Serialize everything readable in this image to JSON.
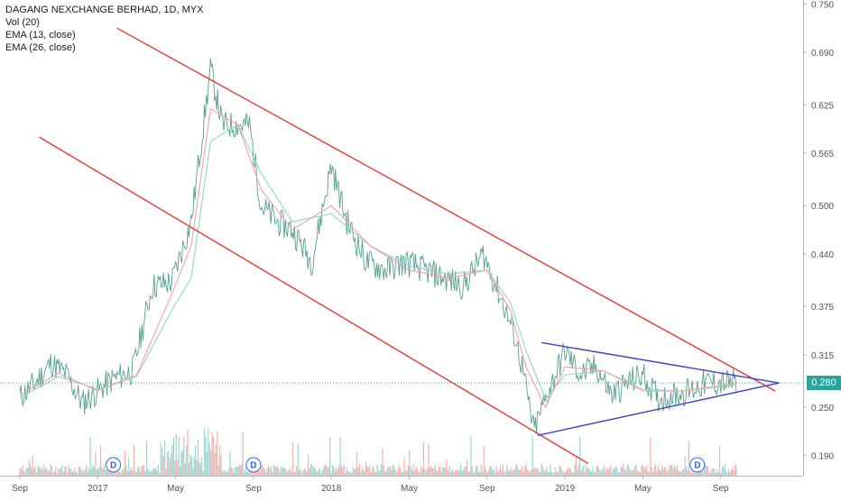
{
  "legend": {
    "title": "DAGANG NEXCHANGE BERHAD, 1D, MYX",
    "volume": "Vol (20)",
    "ema_fast": "EMA (13, close)",
    "ema_slow": "EMA (26, close)"
  },
  "last_price": "0.280",
  "colors": {
    "up": "#26a69a",
    "down": "#ef5350",
    "ema_fast": "#f7a19b",
    "ema_slow": "#8fd6c8",
    "trendline_red": "#e53935",
    "trendline_blue": "#3f3fd0",
    "price_badge": "#26a69a",
    "dividend": "#2962ff"
  },
  "chart_data": {
    "type": "line",
    "title": "DAGANG NEXCHANGE BERHAD, 1D, MYX",
    "x_ticks": [
      "Sep",
      "2017",
      "May",
      "Sep",
      "2018",
      "May",
      "Sep",
      "2019",
      "May",
      "Sep"
    ],
    "y_ticks": [
      "0.750",
      "0.690",
      "0.625",
      "0.565",
      "0.500",
      "0.440",
      "0.375",
      "0.315",
      "0.250",
      "0.190"
    ],
    "ylim": [
      0.165,
      0.755
    ],
    "last_price": 0.28,
    "dividend_markers": [
      "D",
      "D",
      "D"
    ],
    "price_path": {
      "x": [
        0,
        0.2,
        0.4,
        0.6,
        0.8,
        1.0,
        1.2,
        1.45,
        1.7,
        1.95,
        2.2,
        2.45,
        2.6,
        2.8,
        2.95,
        3.1,
        3.3,
        3.5,
        3.75,
        4.0,
        4.2,
        4.45,
        4.7,
        4.95,
        5.2,
        5.45,
        5.7,
        5.95,
        6.2,
        6.35,
        6.45,
        6.6,
        6.75,
        7.0,
        7.2,
        7.4,
        7.6,
        7.8,
        8.0,
        8.2,
        8.4,
        8.6,
        8.8,
        9.0,
        9.2
      ],
      "y": [
        0.262,
        0.28,
        0.305,
        0.29,
        0.255,
        0.27,
        0.285,
        0.295,
        0.4,
        0.405,
        0.48,
        0.67,
        0.6,
        0.6,
        0.6,
        0.5,
        0.48,
        0.47,
        0.43,
        0.55,
        0.48,
        0.43,
        0.42,
        0.43,
        0.42,
        0.41,
        0.4,
        0.44,
        0.38,
        0.34,
        0.3,
        0.22,
        0.26,
        0.32,
        0.29,
        0.3,
        0.265,
        0.28,
        0.29,
        0.26,
        0.265,
        0.27,
        0.28,
        0.28,
        0.28
      ]
    },
    "ema13": {
      "x": [
        0,
        0.5,
        1.0,
        1.5,
        1.95,
        2.2,
        2.45,
        2.8,
        3.1,
        3.5,
        4.0,
        4.5,
        5.0,
        5.5,
        6.0,
        6.3,
        6.5,
        6.75,
        7.0,
        7.5,
        8.0,
        8.5,
        9.0,
        9.2
      ],
      "y": [
        0.265,
        0.292,
        0.27,
        0.29,
        0.39,
        0.45,
        0.62,
        0.6,
        0.52,
        0.47,
        0.5,
        0.45,
        0.42,
        0.41,
        0.42,
        0.37,
        0.3,
        0.25,
        0.3,
        0.295,
        0.27,
        0.27,
        0.277,
        0.28
      ]
    },
    "ema26": {
      "x": [
        0,
        0.5,
        1.0,
        1.5,
        1.95,
        2.2,
        2.45,
        2.8,
        3.1,
        3.5,
        4.0,
        4.5,
        5.0,
        5.5,
        6.0,
        6.3,
        6.5,
        6.75,
        7.0,
        7.5,
        8.0,
        8.5,
        9.0,
        9.2
      ],
      "y": [
        0.262,
        0.288,
        0.272,
        0.288,
        0.37,
        0.41,
        0.58,
        0.6,
        0.54,
        0.48,
        0.49,
        0.45,
        0.425,
        0.415,
        0.42,
        0.38,
        0.32,
        0.26,
        0.29,
        0.295,
        0.272,
        0.27,
        0.275,
        0.278
      ]
    },
    "trendlines": [
      {
        "name": "channel-upper",
        "x": [
          1.25,
          9.7
        ],
        "y": [
          0.72,
          0.27
        ]
      },
      {
        "name": "channel-lower",
        "x": [
          0.25,
          7.3
        ],
        "y": [
          0.585,
          0.18
        ]
      },
      {
        "name": "triangle-upper",
        "x": [
          6.7,
          9.75
        ],
        "y": [
          0.33,
          0.28
        ]
      },
      {
        "name": "triangle-lower",
        "x": [
          6.65,
          9.75
        ],
        "y": [
          0.215,
          0.28
        ]
      }
    ]
  }
}
